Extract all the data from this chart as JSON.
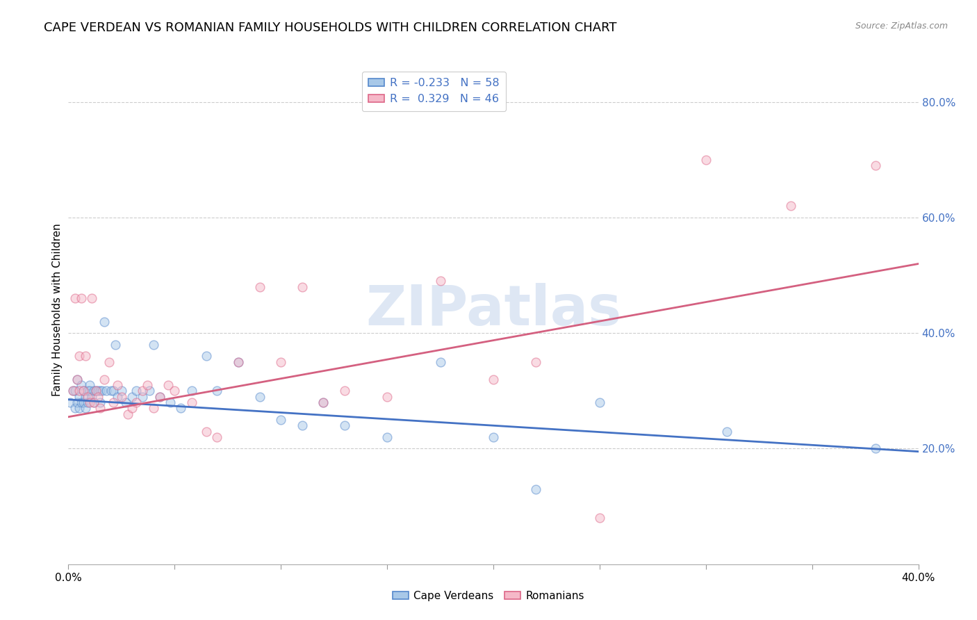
{
  "title": "CAPE VERDEAN VS ROMANIAN FAMILY HOUSEHOLDS WITH CHILDREN CORRELATION CHART",
  "source": "Source: ZipAtlas.com",
  "ylabel": "Family Households with Children",
  "watermark": "ZIPatlas",
  "xlim": [
    0.0,
    0.4
  ],
  "ylim": [
    0.0,
    0.88
  ],
  "xticks": [
    0.0,
    0.05,
    0.1,
    0.15,
    0.2,
    0.25,
    0.3,
    0.35,
    0.4
  ],
  "yticks_right": [
    0.2,
    0.4,
    0.6,
    0.8
  ],
  "ytick_labels_right": [
    "20.0%",
    "40.0%",
    "60.0%",
    "80.0%"
  ],
  "xtick_labels": [
    "0.0%",
    "",
    "",
    "",
    "",
    "",
    "",
    "",
    "40.0%"
  ],
  "legend_blue_label": "R = -0.233   N = 58",
  "legend_pink_label": "R =  0.329   N = 46",
  "legend_names": [
    "Cape Verdeans",
    "Romanians"
  ],
  "blue_color": "#a8c8e8",
  "pink_color": "#f5b8c8",
  "blue_edge_color": "#5588cc",
  "pink_edge_color": "#dd6688",
  "blue_line_color": "#4472c4",
  "pink_line_color": "#d46080",
  "blue_scatter_x": [
    0.001,
    0.002,
    0.003,
    0.003,
    0.004,
    0.004,
    0.005,
    0.005,
    0.006,
    0.006,
    0.007,
    0.007,
    0.008,
    0.008,
    0.009,
    0.009,
    0.01,
    0.01,
    0.011,
    0.012,
    0.012,
    0.013,
    0.014,
    0.015,
    0.015,
    0.016,
    0.017,
    0.018,
    0.02,
    0.021,
    0.022,
    0.023,
    0.025,
    0.027,
    0.03,
    0.032,
    0.035,
    0.038,
    0.04,
    0.043,
    0.048,
    0.053,
    0.058,
    0.065,
    0.07,
    0.08,
    0.09,
    0.1,
    0.11,
    0.12,
    0.13,
    0.15,
    0.175,
    0.2,
    0.22,
    0.25,
    0.31,
    0.38
  ],
  "blue_scatter_y": [
    0.28,
    0.3,
    0.27,
    0.3,
    0.28,
    0.32,
    0.29,
    0.27,
    0.31,
    0.28,
    0.3,
    0.28,
    0.29,
    0.27,
    0.3,
    0.28,
    0.31,
    0.3,
    0.29,
    0.28,
    0.3,
    0.3,
    0.3,
    0.28,
    0.3,
    0.3,
    0.42,
    0.3,
    0.3,
    0.3,
    0.38,
    0.29,
    0.3,
    0.28,
    0.29,
    0.3,
    0.29,
    0.3,
    0.38,
    0.29,
    0.28,
    0.27,
    0.3,
    0.36,
    0.3,
    0.35,
    0.29,
    0.25,
    0.24,
    0.28,
    0.24,
    0.22,
    0.35,
    0.22,
    0.13,
    0.28,
    0.23,
    0.2
  ],
  "pink_scatter_x": [
    0.002,
    0.003,
    0.004,
    0.005,
    0.005,
    0.006,
    0.007,
    0.008,
    0.009,
    0.01,
    0.011,
    0.012,
    0.013,
    0.014,
    0.015,
    0.017,
    0.019,
    0.021,
    0.023,
    0.025,
    0.028,
    0.03,
    0.032,
    0.035,
    0.037,
    0.04,
    0.043,
    0.047,
    0.05,
    0.058,
    0.065,
    0.07,
    0.08,
    0.09,
    0.1,
    0.11,
    0.12,
    0.13,
    0.15,
    0.175,
    0.2,
    0.22,
    0.25,
    0.3,
    0.34,
    0.38
  ],
  "pink_scatter_y": [
    0.3,
    0.46,
    0.32,
    0.36,
    0.3,
    0.46,
    0.3,
    0.36,
    0.29,
    0.28,
    0.46,
    0.28,
    0.3,
    0.29,
    0.27,
    0.32,
    0.35,
    0.28,
    0.31,
    0.29,
    0.26,
    0.27,
    0.28,
    0.3,
    0.31,
    0.27,
    0.29,
    0.31,
    0.3,
    0.28,
    0.23,
    0.22,
    0.35,
    0.48,
    0.35,
    0.48,
    0.28,
    0.3,
    0.29,
    0.49,
    0.32,
    0.35,
    0.08,
    0.7,
    0.62,
    0.69
  ],
  "blue_trend_x": [
    0.0,
    0.4
  ],
  "blue_trend_y": [
    0.285,
    0.195
  ],
  "pink_trend_x": [
    0.0,
    0.4
  ],
  "pink_trend_y": [
    0.255,
    0.52
  ],
  "background_color": "#ffffff",
  "grid_color": "#cccccc",
  "title_fontsize": 13,
  "axis_label_fontsize": 11,
  "tick_fontsize": 11,
  "scatter_size": 85,
  "scatter_alpha": 0.5,
  "scatter_linewidth": 1.0
}
